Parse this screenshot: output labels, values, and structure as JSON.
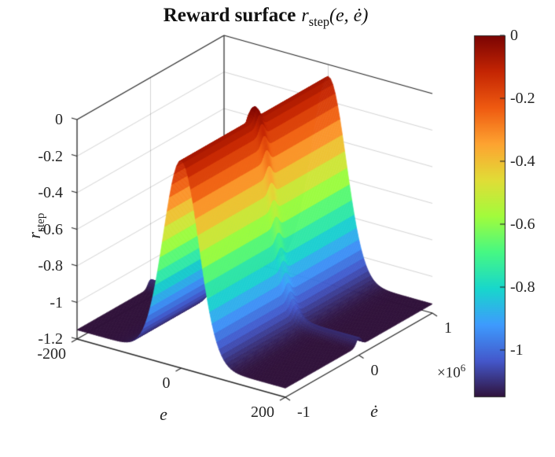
{
  "figure": {
    "title": {
      "prefix": "Reward surface",
      "fn_var": "r",
      "fn_sub": "step",
      "fn_args": "(e, ė)"
    },
    "axes": {
      "x": {
        "label": "e",
        "tick_labels": [
          "-200",
          "0",
          "200"
        ]
      },
      "y": {
        "label": "ė",
        "tick_labels": [
          "-1",
          "0",
          "1"
        ],
        "multiplier_base": "×10",
        "multiplier_exp": "6"
      },
      "z": {
        "label_var": "r",
        "label_sub": "step",
        "tick_labels": [
          "0",
          "-0.2",
          "-0.4",
          "-0.6",
          "-0.8",
          "-1",
          "-1.2"
        ]
      }
    },
    "colorbar": {
      "tick_labels": [
        "0",
        "-0.2",
        "-0.4",
        "-0.6",
        "-0.8",
        "-1"
      ]
    }
  },
  "chart_data": {
    "type": "surface",
    "title": "Reward surface r_step(e, ė)",
    "xlabel": "e",
    "ylabel": "ė",
    "zlabel": "r_step",
    "xlim": [
      -200,
      200
    ],
    "ylim": [
      -1000000,
      1000000
    ],
    "zlim": [
      -1.2,
      0
    ],
    "x_ticks": [
      -200,
      0,
      200
    ],
    "y_ticks": [
      -1000000,
      0,
      1000000
    ],
    "y_tick_display": [
      -1,
      0,
      1
    ],
    "y_multiplier": 1000000,
    "z_ticks": [
      0,
      -0.2,
      -0.4,
      -0.6,
      -0.8,
      -1,
      -1.2
    ],
    "color_axis": [
      -1.15,
      0
    ],
    "colorbar_ticks": [
      0,
      -0.2,
      -0.4,
      -0.6,
      -0.8,
      -1
    ],
    "colormap": {
      "name": "turbo",
      "stops": [
        "#30123b",
        "#4458cb",
        "#3e9bfe",
        "#18d7cc",
        "#46f884",
        "#a2fc3c",
        "#e1dd37",
        "#fea331",
        "#ef5a11",
        "#c42503",
        "#7a0403"
      ]
    },
    "view": {
      "azimuth": -37.5,
      "elevation": 30
    },
    "grid": true,
    "box": true,
    "surface": {
      "formula": "r(e,edot) = -1.15 + 1.085*exp(-(e/48)^2) + 0.045*exp(-(edot/50000)^2) + 0.02*exp(-(e/48)^2)*exp(-(edot/50000)^2)",
      "base": -1.15,
      "ridge_amp": 1.085,
      "ridge_sigma_e": 48,
      "bump_amp": 0.045,
      "bump_sigma_edot": 50000,
      "cross_amp": 0.02,
      "peak": {
        "e": 0,
        "edot": 0,
        "r": 0
      },
      "floor": -1.15,
      "ridge_top": -0.065,
      "mesh": {
        "n_e": 88,
        "n_edot": 140
      }
    },
    "colors": {
      "background": "#ffffff",
      "axis": "#262626",
      "grid_line": "rgba(38,38,38,0.2)"
    }
  }
}
